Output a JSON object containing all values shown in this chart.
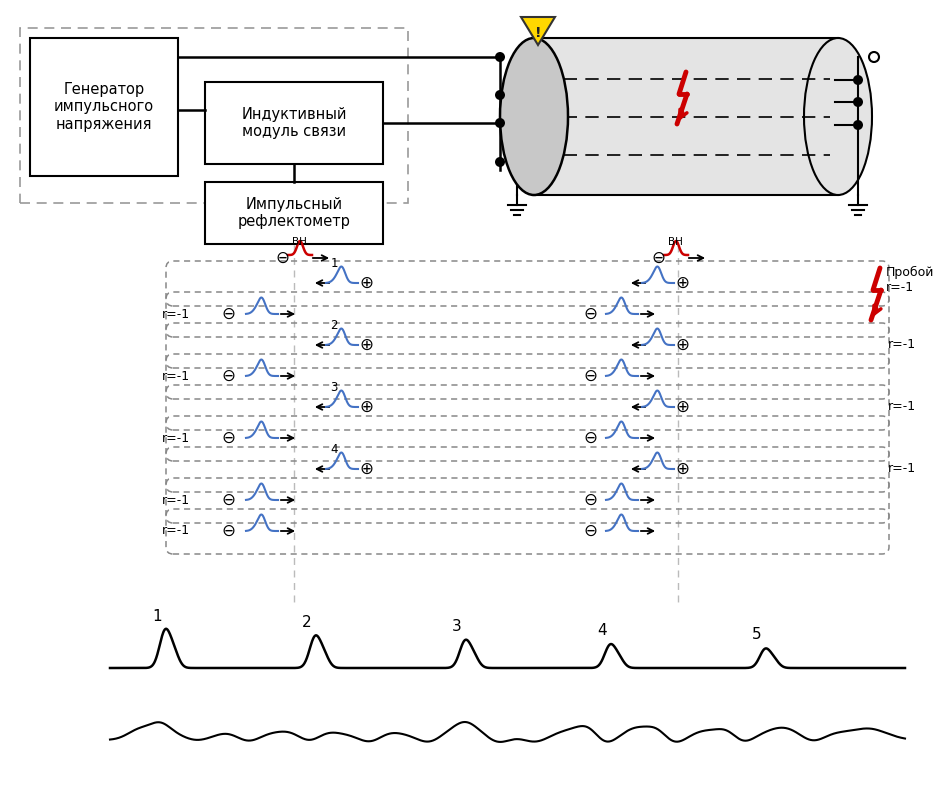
{
  "bg_color": "#ffffff",
  "blue_pulse_color": "#4472c4",
  "red_pulse_color": "#cc0000",
  "cable_fill_light": "#e8e8e8",
  "cable_fill_dark": "#c8c8c8",
  "dashed_color": "#888888",
  "text_color": "#000000",
  "gen_text": "Генератор\nимпульсного\nнапряжения",
  "ind_text": "Индуктивный\nмодуль связи",
  "ref_text": "Импульсный\nрефлектометр",
  "proboi": "Пробой\nr=-1",
  "BH": "ВН",
  "plus": "⊕",
  "minus": "⊖",
  "r_label": "r=-1",
  "peak_labels": [
    "1",
    "2",
    "3",
    "4",
    "5"
  ]
}
